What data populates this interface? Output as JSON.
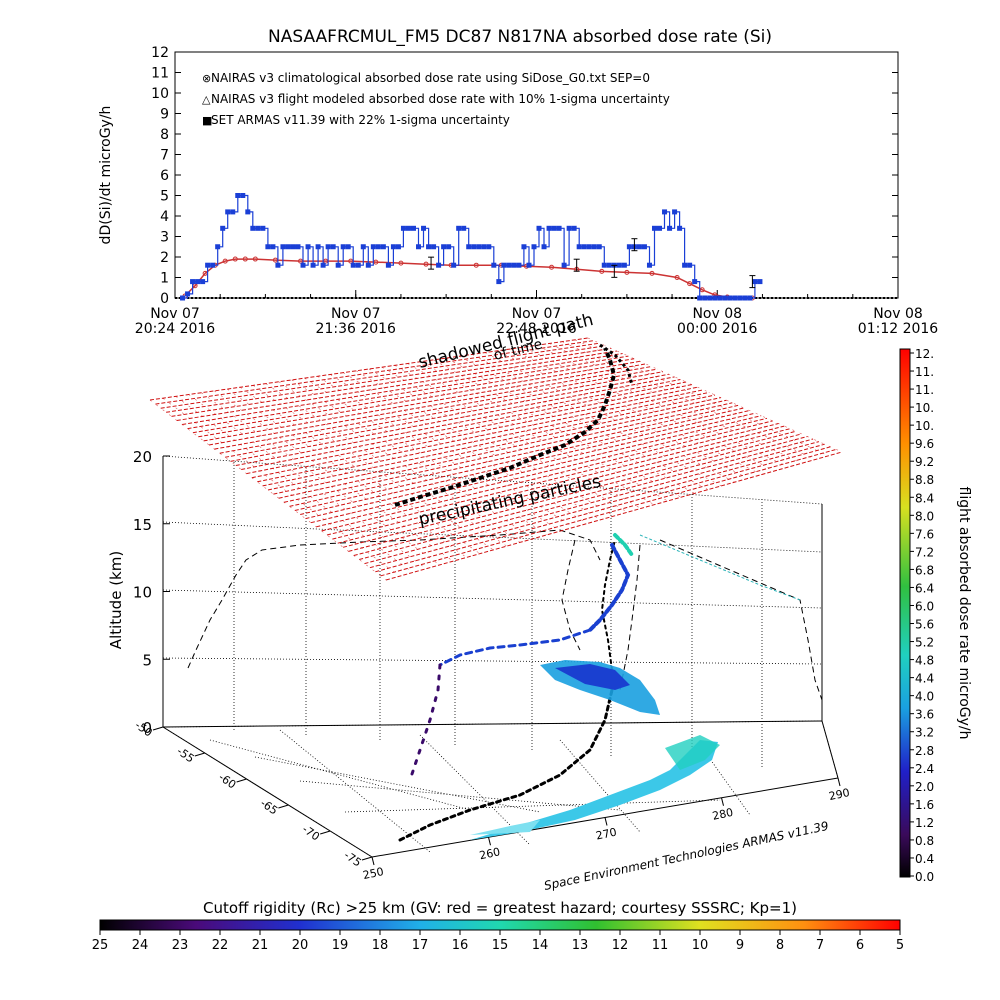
{
  "colors": {
    "climatological": "#cc3333",
    "flight_modeled": "#000000",
    "armas": "#1a3fd6",
    "shadowed_grid": "#d01010"
  },
  "chart_data": [
    {
      "type": "line",
      "title": "NASAAFRCMUL_FM5 DC87 N817NA absorbed dose rate (Si)",
      "ylabel": "dD(Si)/dt microGy/h",
      "ylim": [
        0,
        12
      ],
      "yticks": [
        0,
        1,
        2,
        3,
        4,
        5,
        6,
        7,
        8,
        9,
        10,
        11,
        12
      ],
      "xlim_minutes": [
        0,
        288
      ],
      "x_tick_labels": [
        {
          "minute": 0,
          "line1": "Nov 07",
          "line2": "20:24 2016"
        },
        {
          "minute": 72,
          "line1": "Nov 07",
          "line2": "21:36 2016"
        },
        {
          "minute": 144,
          "line1": "Nov 07",
          "line2": "22:48 2016"
        },
        {
          "minute": 216,
          "line1": "Nov 08",
          "line2": "00:00 2016"
        },
        {
          "minute": 288,
          "line1": "Nov 08",
          "line2": "01:12 2016"
        }
      ],
      "legend": [
        {
          "symbol": "⊗",
          "text": "NAIRAS v3 climatological absorbed dose rate using SiDose_G0.txt SEP=0"
        },
        {
          "symbol": "△",
          "text": "NAIRAS v3 flight modeled absorbed dose rate with 10% 1-sigma uncertainty"
        },
        {
          "symbol": "■",
          "text": "SET ARMAS v11.39 with 22% 1-sigma uncertainty"
        }
      ],
      "legend_position": "top-left",
      "series": [
        {
          "name": "NAIRAS v3 climatological absorbed dose rate using SiDose_G0.txt SEP=0",
          "style": "red-circles",
          "x": [
            4,
            8,
            12,
            16,
            20,
            24,
            28,
            32,
            40,
            50,
            60,
            70,
            80,
            90,
            100,
            110,
            120,
            130,
            140,
            150,
            160,
            170,
            180,
            190,
            200,
            205,
            210,
            215,
            220,
            225,
            230
          ],
          "y": [
            0.1,
            0.6,
            1.2,
            1.6,
            1.8,
            1.9,
            1.9,
            1.9,
            1.85,
            1.8,
            1.8,
            1.8,
            1.75,
            1.7,
            1.65,
            1.6,
            1.6,
            1.6,
            1.55,
            1.5,
            1.4,
            1.3,
            1.25,
            1.2,
            1.0,
            0.7,
            0.4,
            0.15,
            0.05,
            0.0,
            0.0
          ]
        },
        {
          "name": "NAIRAS v3 flight modeled absorbed dose rate with 10% 1-sigma uncertainty",
          "style": "black-triangles",
          "x": [
            0,
            288
          ],
          "y": [
            0,
            0
          ]
        },
        {
          "name": "SET ARMAS v11.39 with 22% 1-sigma uncertainty",
          "style": "blue-step",
          "x": [
            3,
            5,
            7,
            9,
            11,
            13,
            15,
            17,
            19,
            21,
            23,
            25,
            27,
            29,
            31,
            33,
            35,
            37,
            39,
            41,
            43,
            45,
            47,
            49,
            51,
            53,
            55,
            57,
            59,
            61,
            63,
            65,
            67,
            69,
            71,
            73,
            75,
            77,
            79,
            81,
            83,
            85,
            87,
            89,
            91,
            93,
            95,
            97,
            99,
            101,
            103,
            105,
            107,
            109,
            111,
            113,
            115,
            117,
            119,
            121,
            123,
            125,
            127,
            129,
            131,
            133,
            135,
            137,
            139,
            141,
            143,
            145,
            147,
            149,
            151,
            153,
            155,
            157,
            159,
            161,
            163,
            165,
            167,
            169,
            171,
            173,
            175,
            177,
            179,
            181,
            183,
            185,
            187,
            189,
            191,
            193,
            195,
            197,
            199,
            201,
            203,
            205,
            207,
            209,
            211,
            213,
            215,
            217,
            219,
            221,
            223,
            225,
            227,
            229,
            231,
            233
          ],
          "y": [
            0,
            0.2,
            0.8,
            0.8,
            0.8,
            1.6,
            1.6,
            2.5,
            3.4,
            4.2,
            4.2,
            5.0,
            5.0,
            4.2,
            3.4,
            3.4,
            3.4,
            2.5,
            2.5,
            1.6,
            2.5,
            2.5,
            2.5,
            2.5,
            1.6,
            2.5,
            1.6,
            2.5,
            1.6,
            2.5,
            2.5,
            1.6,
            2.5,
            2.5,
            1.6,
            1.6,
            2.5,
            1.6,
            2.5,
            2.5,
            2.5,
            1.6,
            2.5,
            2.5,
            3.4,
            3.4,
            3.4,
            2.5,
            3.4,
            2.5,
            2.5,
            1.6,
            2.5,
            2.5,
            1.6,
            3.4,
            3.4,
            2.5,
            2.5,
            2.5,
            2.5,
            2.5,
            1.6,
            0.8,
            1.6,
            1.6,
            1.6,
            1.6,
            2.5,
            1.6,
            2.5,
            3.4,
            2.5,
            3.4,
            3.4,
            3.4,
            1.6,
            3.4,
            3.4,
            2.5,
            2.5,
            2.5,
            2.5,
            2.5,
            1.6,
            1.6,
            1.6,
            1.6,
            1.6,
            2.5,
            2.5,
            2.5,
            2.5,
            1.6,
            3.4,
            3.4,
            4.2,
            3.4,
            4.2,
            3.4,
            1.6,
            1.6,
            0.8,
            0.0,
            0.0,
            0.0,
            0.0,
            0.0,
            0.0,
            0.0,
            0.0,
            0.0,
            0.0,
            0.0,
            0.8,
            0.8
          ]
        }
      ]
    },
    {
      "type": "scatter",
      "ylabel": "Altitude (km)",
      "zlim": [
        0,
        20
      ],
      "z_ticks": [
        0,
        5,
        10,
        15,
        20
      ],
      "lat_ticks": [
        "-50",
        "-55",
        "-60",
        "-65",
        "-70",
        "-75"
      ],
      "lon_ticks": [
        "250",
        "260",
        "270",
        "280",
        "290"
      ],
      "annotations": [
        "shadowed flight path",
        "of time",
        "precipitating particles"
      ],
      "watermark": "Space Environment Technologies ARMAS v11.39",
      "colorbar_label": "flight absorbed dose rate microGy/h",
      "colorbar_ticks": [
        "12.",
        "11.",
        "11.",
        "10.",
        "10.",
        "9.6",
        "9.2",
        "8.8",
        "8.4",
        "8.0",
        "7.6",
        "7.2",
        "6.8",
        "6.4",
        "6.0",
        "5.6",
        "5.2",
        "4.8",
        "4.4",
        "4.0",
        "3.6",
        "3.2",
        "2.8",
        "2.4",
        "2.0",
        "1.6",
        "1.2",
        "0.8",
        "0.4",
        "0.0"
      ]
    },
    {
      "type": "heatmap",
      "label": "Cutoff rigidity (Rc) >25 km (GV: red = greatest hazard; courtesy SSSRC; Kp=1)",
      "ticks": [
        "25",
        "24",
        "23",
        "22",
        "21",
        "20",
        "19",
        "18",
        "17",
        "16",
        "15",
        "14",
        "13",
        "12",
        "11",
        "10",
        "9",
        "8",
        "7",
        "6",
        "5"
      ]
    }
  ]
}
